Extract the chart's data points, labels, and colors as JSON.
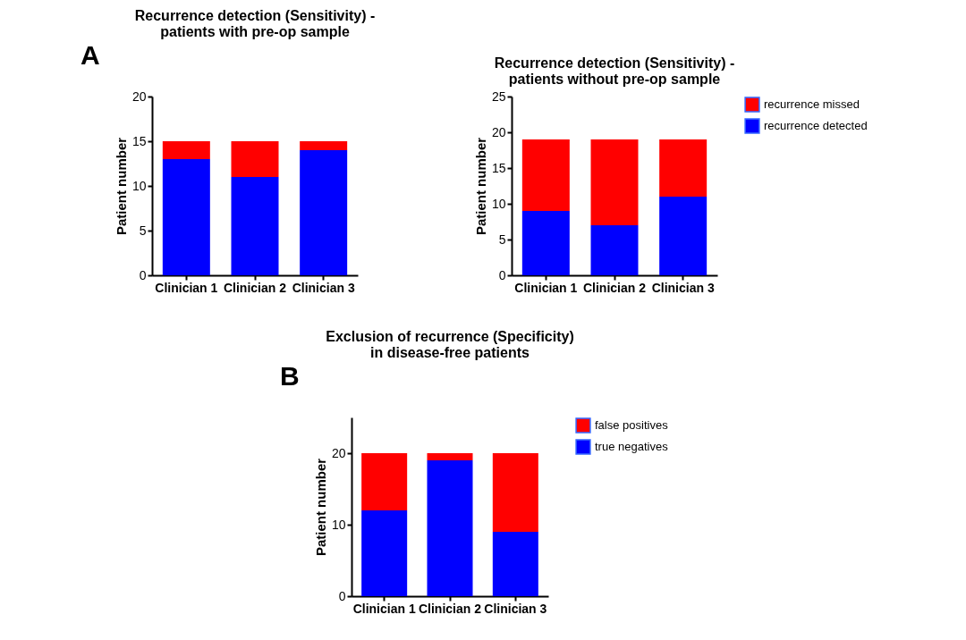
{
  "chart_data": [
    {
      "type": "bar",
      "stacked": true,
      "title": "Recurrence detection (Sensitivity) -\npatients with pre-op sample",
      "ylabel": "Patient number",
      "categories": [
        "Clinician 1",
        "Clinician 2",
        "Clinician 3"
      ],
      "ylim": [
        0,
        20
      ],
      "yticks": [
        0,
        5,
        10,
        15,
        20
      ],
      "grid": false,
      "legend": false,
      "annotations": [
        "A"
      ],
      "series": [
        {
          "color": "#0000ff",
          "values": [
            13,
            11,
            14
          ]
        },
        {
          "color": "#ff0000",
          "values": [
            2,
            4,
            1
          ]
        }
      ]
    },
    {
      "type": "bar",
      "stacked": true,
      "title": "Recurrence detection (Sensitivity) -\npatients without pre-op sample",
      "ylabel": "Patient number",
      "categories": [
        "Clinician 1",
        "Clinician 2",
        "Clinician 3"
      ],
      "ylim": [
        0,
        25
      ],
      "yticks": [
        0,
        5,
        10,
        15,
        20,
        25
      ],
      "grid": false,
      "legend": "right",
      "series": [
        {
          "name": "recurrence detected",
          "color": "#0000ff",
          "values": [
            9,
            7,
            11
          ]
        },
        {
          "name": "recurrence missed",
          "color": "#ff0000",
          "values": [
            10,
            12,
            8
          ]
        }
      ]
    },
    {
      "type": "bar",
      "stacked": true,
      "title": "Exclusion of recurrence (Specificity)\nin disease-free patients",
      "ylabel": "Patient number",
      "categories": [
        "Clinician 1",
        "Clinician 2",
        "Clinician 3"
      ],
      "ylim": [
        0,
        25
      ],
      "yticks": [
        0,
        10,
        20
      ],
      "grid": false,
      "legend": "right",
      "annotations": [
        "B"
      ],
      "series": [
        {
          "name": "true negatives",
          "color": "#0000ff",
          "values": [
            12,
            19,
            9
          ]
        },
        {
          "name": "false positives",
          "color": "#ff0000",
          "values": [
            8,
            1,
            11
          ]
        }
      ]
    }
  ]
}
